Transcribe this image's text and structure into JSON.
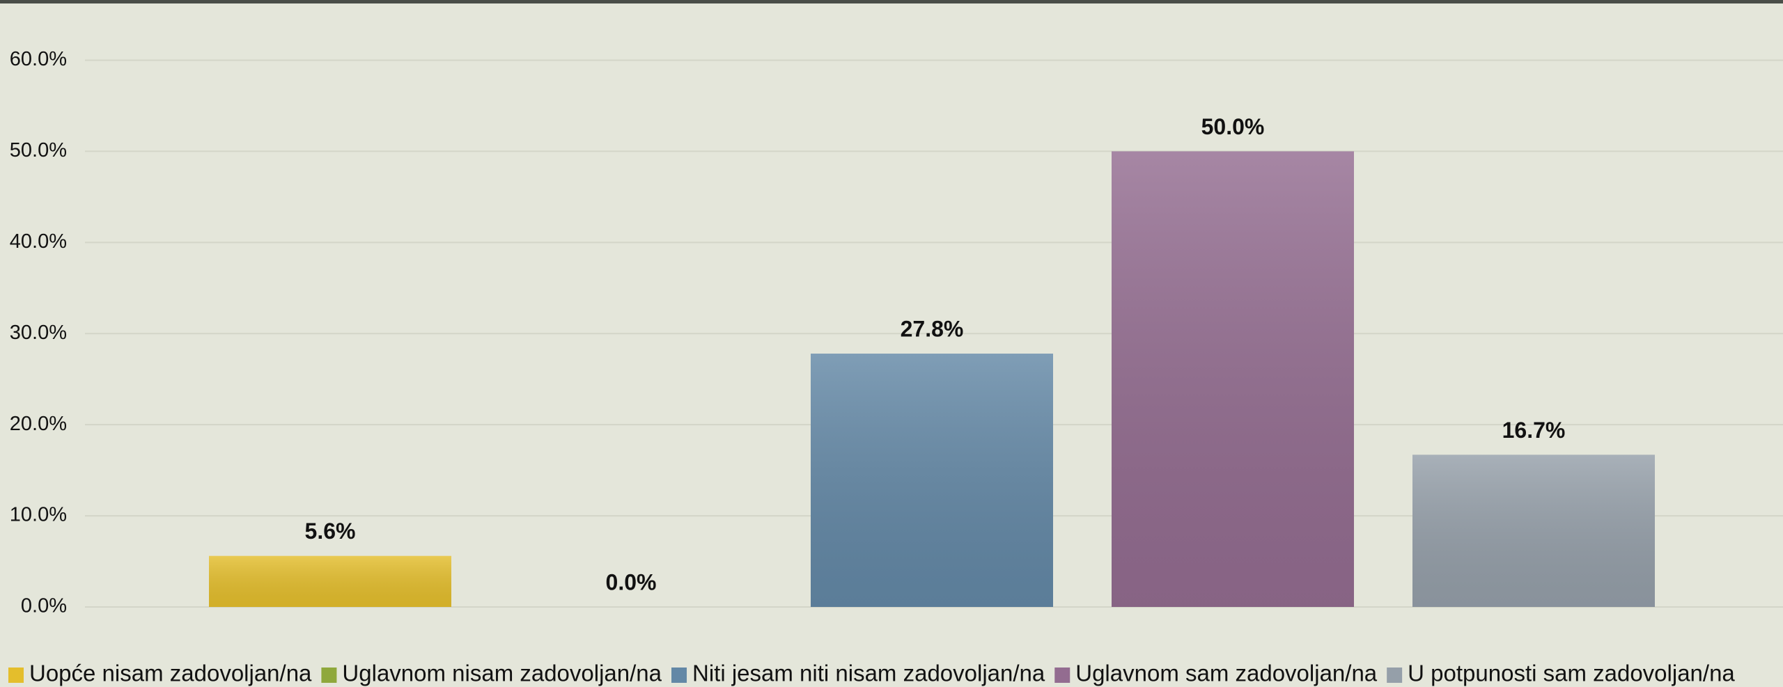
{
  "chart_data": {
    "type": "bar",
    "categories": [
      null
    ],
    "series": [
      {
        "name": "Uopće nisam zadovoljan/na",
        "color": "#e4be2c",
        "values": [
          5.6
        ],
        "value_labels": [
          "5.6%"
        ]
      },
      {
        "name": "Uglavnom nisam zadovoljan/na",
        "color": "#8fa83c",
        "values": [
          0
        ],
        "value_labels": [
          "0.0%"
        ]
      },
      {
        "name": "Niti jesam niti nisam zadovoljan/na",
        "color": "#6388a6",
        "values": [
          27.8
        ],
        "value_labels": [
          "27.8%"
        ]
      },
      {
        "name": "Uglavnom sam zadovoljan/na",
        "color": "#936c90",
        "values": [
          50
        ],
        "value_labels": [
          "50.0%"
        ]
      },
      {
        "name": "U potpunosti sam zadovoljan/na",
        "color": "#959fa9",
        "values": [
          16.7
        ],
        "value_labels": [
          "16.7%"
        ]
      }
    ],
    "ylim": [
      0,
      60
    ],
    "yticks": [
      {
        "value": 0,
        "label": "0.0%"
      },
      {
        "value": 10,
        "label": "10.0%"
      },
      {
        "value": 20,
        "label": "20.0%"
      },
      {
        "value": 30,
        "label": "30.0%"
      },
      {
        "value": 40,
        "label": "40.0%"
      },
      {
        "value": 50,
        "label": "50.0%"
      },
      {
        "value": 60,
        "label": "60.0%"
      }
    ],
    "grid": true,
    "legend": "bottom"
  }
}
